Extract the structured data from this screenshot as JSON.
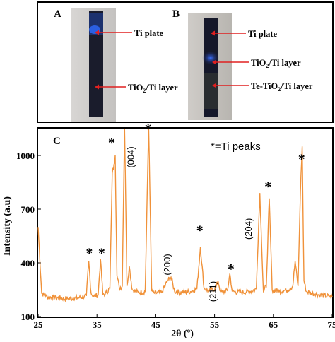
{
  "figure": {
    "panel_a": {
      "label": "A",
      "annotations": [
        {
          "text": "Ti plate",
          "sub": ""
        },
        {
          "text": "TiO",
          "sub": "2",
          "rest": "/Ti layer"
        }
      ]
    },
    "panel_b": {
      "label": "B",
      "annotations": [
        {
          "text": "Ti plate",
          "sub": ""
        },
        {
          "text": "TiO",
          "sub": "2",
          "rest": "/Ti layer"
        },
        {
          "text": "Te-TiO",
          "sub": "2",
          "rest": "/Ti layer"
        }
      ]
    },
    "panel_c": {
      "label": "C",
      "legend_text": "*=Ti peaks"
    },
    "colors": {
      "trace": "#f0923a",
      "arrow": "#e02020",
      "frame": "#000000"
    }
  },
  "chart_data": {
    "type": "line",
    "xlabel": "2θ (º)",
    "ylabel": "Intensity (a.u)",
    "xlim": [
      25,
      75
    ],
    "ylim": [
      100,
      1150
    ],
    "x_ticks": [
      25,
      35,
      45,
      55,
      65,
      75
    ],
    "x_tick_labels": [
      "25",
      "35",
      "45",
      "55",
      "65",
      "75"
    ],
    "y_ticks": [
      100,
      400,
      700,
      1000
    ],
    "y_tick_labels": [
      "100",
      "400",
      "700",
      "1000"
    ],
    "series": [
      {
        "x": [
          25,
          25.6,
          26.5,
          28,
          30,
          32,
          33.2,
          33.6,
          34.0,
          34.4,
          35.2,
          35.6,
          36.0,
          36.4,
          37.2,
          37.6,
          37.9,
          38.1,
          38.4,
          38.8,
          39.3,
          39.7,
          40.1,
          40.5,
          41.0,
          42.0,
          43.2,
          43.8,
          44.3,
          44.8,
          46.0,
          47.0,
          47.6,
          48.2,
          49.5,
          51.0,
          52.0,
          52.6,
          53.2,
          54.0,
          55.2,
          55.6,
          56.0,
          56.4,
          57.2,
          57.6,
          58.0,
          59.5,
          61.0,
          62.1,
          62.7,
          63.3,
          63.8,
          64.3,
          64.8,
          66.0,
          67.5,
          68.3,
          68.7,
          69.2,
          69.6,
          69.9,
          70.2,
          70.6,
          71.5,
          73.0,
          75
        ],
        "y": [
          600,
          230,
          210,
          205,
          200,
          205,
          215,
          410,
          230,
          215,
          220,
          420,
          225,
          225,
          260,
          900,
          950,
          1000,
          330,
          260,
          270,
          1185,
          270,
          380,
          250,
          235,
          240,
          1185,
          245,
          230,
          235,
          300,
          320,
          240,
          235,
          240,
          255,
          490,
          260,
          240,
          260,
          300,
          240,
          235,
          245,
          340,
          240,
          235,
          240,
          255,
          790,
          240,
          270,
          760,
          250,
          240,
          250,
          270,
          410,
          270,
          800,
          1050,
          300,
          240,
          230,
          220,
          210
        ]
      }
    ],
    "annotations": [
      {
        "text": "*",
        "x": 33.7,
        "y": 430
      },
      {
        "text": "*",
        "x": 35.8,
        "y": 430
      },
      {
        "text": "*",
        "x": 37.5,
        "y": 1045
      },
      {
        "text": "*",
        "x": 43.7,
        "y": 1125
      },
      {
        "text": "*",
        "x": 52.5,
        "y": 555
      },
      {
        "text": "*",
        "x": 57.8,
        "y": 340
      },
      {
        "text": "*",
        "x": 64.1,
        "y": 800
      },
      {
        "text": "*",
        "x": 69.8,
        "y": 955
      },
      {
        "text": "(004)",
        "x": 41.3,
        "y": 990,
        "rotated": true
      },
      {
        "text": "(200)",
        "x": 47.5,
        "y": 390,
        "rotated": true
      },
      {
        "text": "(211)",
        "x": 55.2,
        "y": 240,
        "rotated": true
      },
      {
        "text": "(204)",
        "x": 61.3,
        "y": 590,
        "rotated": true
      }
    ]
  }
}
